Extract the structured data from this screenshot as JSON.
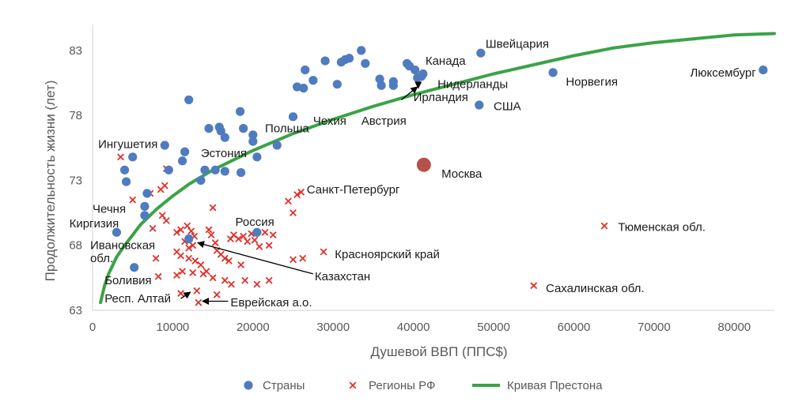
{
  "chart_data": {
    "type": "scatter",
    "xlabel": "Душевой ВВП (ППС$)",
    "ylabel": "Продолжительность жизни (лет)",
    "xlim": [
      0,
      85000
    ],
    "ylim": [
      63,
      85
    ],
    "x_ticks": [
      "0",
      "10000",
      "20000",
      "30000",
      "40000",
      "50000",
      "60000",
      "70000",
      "80000"
    ],
    "y_ticks": [
      "63",
      "68",
      "73",
      "78",
      "83"
    ],
    "grid": false,
    "legend_position": "bottom",
    "colors": {
      "countries": "#4f7bbf",
      "regions": "#e0312b",
      "curve": "#3aa346",
      "moscow": "#b5524a"
    },
    "series": [
      {
        "name": "Страны",
        "marker": "circle",
        "points": [
          [
            5000,
            74.8
          ],
          [
            9000,
            75.7
          ],
          [
            12000,
            79.2
          ],
          [
            11500,
            75.2
          ],
          [
            11200,
            74.5
          ],
          [
            9500,
            73.8
          ],
          [
            4000,
            73.8
          ],
          [
            4200,
            72.9
          ],
          [
            6800,
            72.0
          ],
          [
            6500,
            71.0
          ],
          [
            6500,
            70.3
          ],
          [
            3000,
            69.0
          ],
          [
            5200,
            66.3
          ],
          [
            12000,
            68.5
          ],
          [
            14500,
            77.0
          ],
          [
            15800,
            77.1
          ],
          [
            16000,
            76.8
          ],
          [
            16500,
            76.3
          ],
          [
            18400,
            78.3
          ],
          [
            18800,
            77.0
          ],
          [
            20000,
            76.5
          ],
          [
            20000,
            76.0
          ],
          [
            20500,
            74.8
          ],
          [
            23000,
            75.7
          ],
          [
            14000,
            73.8
          ],
          [
            15300,
            73.8
          ],
          [
            16500,
            73.7
          ],
          [
            18500,
            73.6
          ],
          [
            13500,
            73.0
          ],
          [
            20500,
            69.0
          ],
          [
            25000,
            77.9
          ],
          [
            25500,
            80.2
          ],
          [
            26300,
            80.1
          ],
          [
            26500,
            81.5
          ],
          [
            27500,
            80.7
          ],
          [
            29000,
            82.2
          ],
          [
            30500,
            80.4
          ],
          [
            31000,
            82.1
          ],
          [
            31500,
            82.3
          ],
          [
            32000,
            82.4
          ],
          [
            33500,
            83.0
          ],
          [
            34000,
            82.0
          ],
          [
            35800,
            80.8
          ],
          [
            36000,
            80.3
          ],
          [
            37500,
            80.6
          ],
          [
            37500,
            80.3
          ],
          [
            39200,
            82.0
          ],
          [
            39500,
            81.8
          ],
          [
            40200,
            81.5
          ],
          [
            40500,
            80.9
          ],
          [
            41000,
            81.0
          ],
          [
            41200,
            81.2
          ],
          [
            48400,
            82.8
          ],
          [
            48200,
            78.8
          ],
          [
            57400,
            81.3
          ],
          [
            83600,
            81.5
          ]
        ]
      },
      {
        "name": "Регионы РФ",
        "marker": "x",
        "points": [
          [
            3500,
            74.8
          ],
          [
            5000,
            71.5
          ],
          [
            7200,
            72.0
          ],
          [
            7500,
            69.3
          ],
          [
            8500,
            72.3
          ],
          [
            9000,
            72.6
          ],
          [
            9200,
            73.9
          ],
          [
            8700,
            70.3
          ],
          [
            9200,
            69.9
          ],
          [
            10500,
            69.0
          ],
          [
            11000,
            69.2
          ],
          [
            11800,
            69.5
          ],
          [
            12300,
            69.1
          ],
          [
            12700,
            68.7
          ],
          [
            11500,
            68.3
          ],
          [
            12000,
            67.8
          ],
          [
            12500,
            68.0
          ],
          [
            10500,
            67.5
          ],
          [
            11000,
            67.2
          ],
          [
            12000,
            67.0
          ],
          [
            12800,
            66.8
          ],
          [
            13500,
            66.5
          ],
          [
            14200,
            66.0
          ],
          [
            14500,
            69.2
          ],
          [
            14800,
            68.8
          ],
          [
            15000,
            70.9
          ],
          [
            15300,
            68.2
          ],
          [
            15500,
            67.6
          ],
          [
            16000,
            67.3
          ],
          [
            16500,
            67.0
          ],
          [
            17000,
            66.8
          ],
          [
            17200,
            68.5
          ],
          [
            17600,
            68.8
          ],
          [
            18200,
            68.5
          ],
          [
            18800,
            68.7
          ],
          [
            19300,
            68.3
          ],
          [
            19800,
            68.9
          ],
          [
            20200,
            68.4
          ],
          [
            20800,
            67.9
          ],
          [
            21500,
            69.0
          ],
          [
            22000,
            68.0
          ],
          [
            22500,
            68.8
          ],
          [
            7900,
            67.0
          ],
          [
            8200,
            65.6
          ],
          [
            10500,
            65.7
          ],
          [
            11200,
            66.0
          ],
          [
            12500,
            65.9
          ],
          [
            13800,
            65.8
          ],
          [
            15000,
            65.5
          ],
          [
            16500,
            65.3
          ],
          [
            17300,
            65.0
          ],
          [
            19000,
            65.3
          ],
          [
            20500,
            65.0
          ],
          [
            22000,
            65.3
          ],
          [
            11000,
            64.3
          ],
          [
            13000,
            64.5
          ],
          [
            13200,
            63.6
          ],
          [
            15500,
            64.2
          ],
          [
            18500,
            66.5
          ],
          [
            24400,
            71.4
          ],
          [
            25000,
            70.5
          ],
          [
            25500,
            71.9
          ],
          [
            26000,
            72.1
          ],
          [
            25000,
            66.9
          ],
          [
            26200,
            67.0
          ],
          [
            28800,
            67.5
          ],
          [
            55000,
            64.9
          ],
          [
            63800,
            69.5
          ]
        ]
      },
      {
        "name": "",
        "marker": "circle-large",
        "points": [
          [
            41300,
            74.2
          ]
        ]
      },
      {
        "name": "Кривая Престона",
        "type": "line",
        "points": [
          [
            1000,
            63.6
          ],
          [
            1500,
            64.9
          ],
          [
            2000,
            65.8
          ],
          [
            3000,
            67.1
          ],
          [
            4000,
            68.0
          ],
          [
            5000,
            68.8
          ],
          [
            6000,
            69.6
          ],
          [
            8000,
            70.8
          ],
          [
            10000,
            71.8
          ],
          [
            12000,
            72.7
          ],
          [
            15000,
            73.8
          ],
          [
            20000,
            75.3
          ],
          [
            25000,
            76.6
          ],
          [
            30000,
            77.7
          ],
          [
            35000,
            78.7
          ],
          [
            40000,
            79.6
          ],
          [
            45000,
            80.4
          ],
          [
            50000,
            81.2
          ],
          [
            55000,
            81.9
          ],
          [
            60000,
            82.6
          ],
          [
            65000,
            83.2
          ],
          [
            70000,
            83.6
          ],
          [
            75000,
            83.9
          ],
          [
            80000,
            84.2
          ],
          [
            85000,
            84.3
          ]
        ]
      }
    ],
    "annotations": [
      {
        "text": "Швейцария",
        "x": 49000,
        "y": 83.5,
        "anchor": "start"
      },
      {
        "text": "Канада",
        "x": 41500,
        "y": 82.2,
        "anchor": "start"
      },
      {
        "text": "Люксембург",
        "x": 82700,
        "y": 81.3,
        "anchor": "end"
      },
      {
        "text": "Норвегия",
        "x": 59000,
        "y": 80.6,
        "anchor": "start"
      },
      {
        "text": "Нидерланды",
        "x": 43000,
        "y": 80.4,
        "anchor": "start"
      },
      {
        "text": "Ирландия",
        "x": 40000,
        "y": 79.4,
        "anchor": "start"
      },
      {
        "text": "США",
        "x": 50000,
        "y": 78.7,
        "anchor": "start"
      },
      {
        "text": "Австрия",
        "x": 33500,
        "y": 77.6,
        "anchor": "start"
      },
      {
        "text": "Чехия",
        "x": 27500,
        "y": 77.6,
        "anchor": "start"
      },
      {
        "text": "Польша",
        "x": 21500,
        "y": 77.0,
        "anchor": "start"
      },
      {
        "text": "Ингушетия",
        "x": 700,
        "y": 75.8,
        "anchor": "start"
      },
      {
        "text": "Эстония",
        "x": 13500,
        "y": 75.1,
        "anchor": "start"
      },
      {
        "text": "Москва",
        "x": 43500,
        "y": 73.5,
        "anchor": "start"
      },
      {
        "text": "Санкт-Петербург",
        "x": 26700,
        "y": 72.3,
        "anchor": "start"
      },
      {
        "text": "Чечня",
        "x": 0,
        "y": 70.8,
        "anchor": "start"
      },
      {
        "text": "Россия",
        "x": 17800,
        "y": 69.8,
        "anchor": "start"
      },
      {
        "text": "Киргизия",
        "x": -2900,
        "y": 69.7,
        "anchor": "start"
      },
      {
        "text": "Тюменская обл.",
        "x": 65500,
        "y": 69.4,
        "anchor": "start"
      },
      {
        "text": "Ивановская",
        "x": -300,
        "y": 68.0,
        "anchor": "start"
      },
      {
        "text": "обл.",
        "x": -300,
        "y": 67.0,
        "anchor": "start"
      },
      {
        "text": "Красноярский край",
        "x": 30200,
        "y": 67.3,
        "anchor": "start"
      },
      {
        "text": "Казахстан",
        "x": 27700,
        "y": 65.6,
        "anchor": "start"
      },
      {
        "text": "Боливия",
        "x": 1500,
        "y": 65.3,
        "anchor": "start"
      },
      {
        "text": "Сахалинская обл.",
        "x": 56500,
        "y": 64.7,
        "anchor": "start"
      },
      {
        "text": "Респ. Алтай",
        "x": 1500,
        "y": 63.9,
        "anchor": "start"
      },
      {
        "text": "Еврейская а.о.",
        "x": 17200,
        "y": 63.6,
        "anchor": "start"
      }
    ],
    "arrows": [
      {
        "from": [
          40600,
          80.5
        ],
        "to": [
          40600,
          80.1
        ]
      },
      {
        "from": [
          38500,
          79.2
        ],
        "to": [
          40500,
          80.2
        ]
      },
      {
        "from": [
          27500,
          65.8
        ],
        "to": [
          13100,
          68.2
        ]
      },
      {
        "from": [
          11000,
          63.9
        ],
        "to": [
          12200,
          64.4
        ]
      },
      {
        "from": [
          16900,
          63.7
        ],
        "to": [
          13700,
          63.7
        ]
      }
    ]
  }
}
